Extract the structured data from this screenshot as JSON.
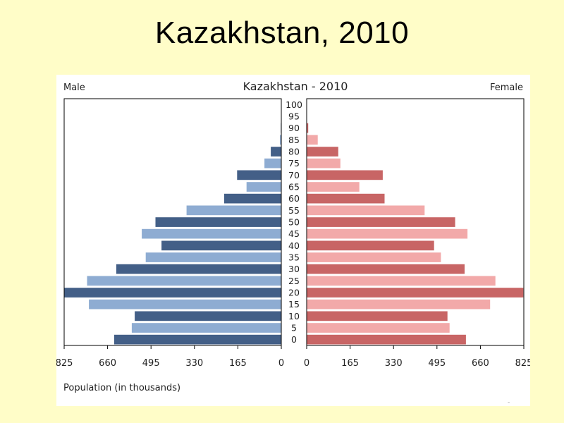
{
  "slide": {
    "title": "Kazakhstan, 2010"
  },
  "chart_data": {
    "type": "bar",
    "orientation": "horizontal-population-pyramid",
    "title": "Kazakhstan - 2010",
    "left_label": "Male",
    "right_label": "Female",
    "xlabel": "Population (in thousands)",
    "xlim": [
      0,
      825
    ],
    "x_ticks_left": [
      "825",
      "660",
      "495",
      "330",
      "165",
      "0"
    ],
    "x_ticks_right": [
      "0",
      "165",
      "330",
      "495",
      "660",
      "825"
    ],
    "x_tick_values": [
      0,
      165,
      330,
      495,
      660,
      825
    ],
    "categories": [
      "100",
      "95",
      "90",
      "85",
      "80",
      "75",
      "70",
      "65",
      "60",
      "55",
      "50",
      "45",
      "40",
      "35",
      "30",
      "25",
      "20",
      "15",
      "10",
      "5",
      "0"
    ],
    "series": [
      {
        "name": "Male",
        "values": [
          1,
          1,
          2,
          5,
          40,
          64,
          168,
          132,
          217,
          360,
          478,
          530,
          455,
          515,
          627,
          738,
          850,
          731,
          557,
          568,
          635
        ]
      },
      {
        "name": "Female",
        "values": [
          1,
          1,
          6,
          42,
          120,
          128,
          289,
          200,
          296,
          448,
          564,
          611,
          484,
          510,
          600,
          717,
          823,
          697,
          535,
          543,
          605
        ]
      }
    ],
    "colors": {
      "male_dark": "#435F87",
      "male_light": "#8EACD2",
      "female_dark": "#C86565",
      "female_light": "#F2A9A9",
      "axis": "#000000"
    }
  },
  "footer": {
    "page_mark": "-"
  }
}
